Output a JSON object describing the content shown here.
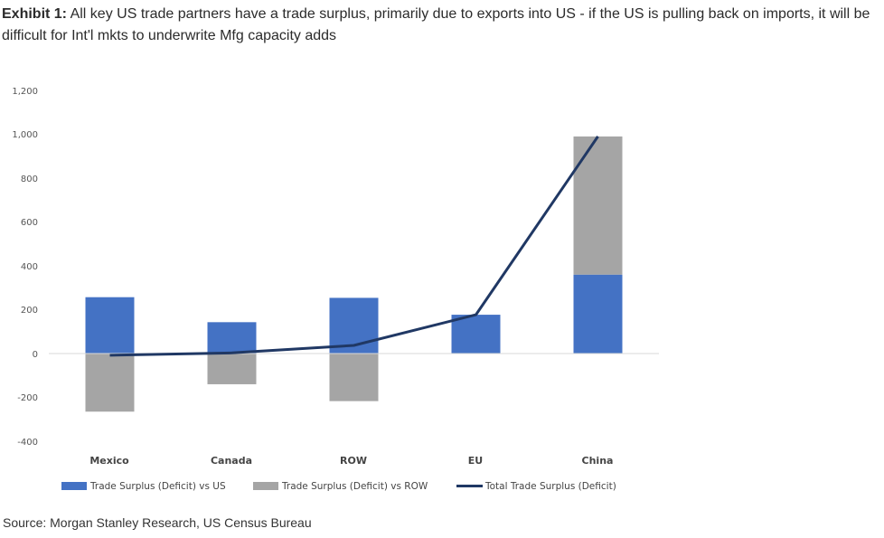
{
  "header": {
    "exhibit_label": "Exhibit 1:",
    "exhibit_text": " All key US trade partners have a trade surplus, primarily due to exports into US - if the US is pulling back on imports, it will be difficult for Int'l mkts to underwrite Mfg capacity adds"
  },
  "footer": {
    "source": "Source: Morgan Stanley Research, US Census Bureau"
  },
  "colors": {
    "us": "#4472c4",
    "row": "#a5a5a5",
    "total": "#203864",
    "gridline": "#d9d9d9"
  },
  "chart_data": {
    "type": "bar",
    "stacked": true,
    "categories": [
      "Mexico",
      "Canada",
      "ROW",
      "EU",
      "China"
    ],
    "series": [
      {
        "name": "Trade Surplus (Deficit) vs US",
        "type": "bar",
        "values": [
          257,
          143,
          254,
          177,
          360
        ]
      },
      {
        "name": "Trade Surplus (Deficit) vs ROW",
        "type": "bar",
        "values": [
          -265,
          -140,
          -217,
          0,
          630
        ]
      },
      {
        "name": "Total Trade Surplus (Deficit)",
        "type": "line",
        "values": [
          -8,
          3,
          37,
          177,
          990
        ]
      }
    ],
    "y_ticks": [
      "1,200",
      "1,000",
      "800",
      "600",
      "400",
      "200",
      "0",
      "-200",
      "-400"
    ],
    "ylim": [
      -400,
      1200
    ],
    "legend_position": "bottom",
    "grid": false
  }
}
